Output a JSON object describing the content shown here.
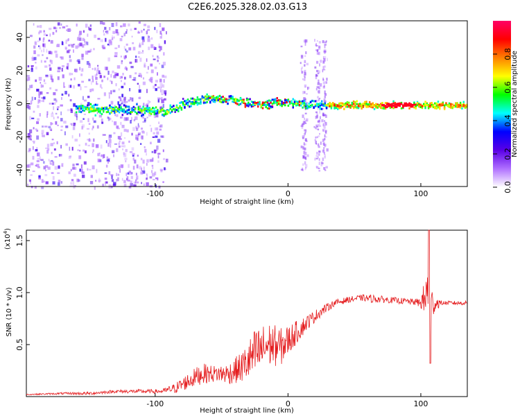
{
  "title": "C2E6.2025.328.02.03.G13",
  "chart_data": [
    {
      "type": "heatmap",
      "name": "spectrogram",
      "xlabel": "Height of straight line (km)",
      "ylabel": "Frequency (Hz)",
      "xlim": [
        -197,
        135
      ],
      "ylim": [
        -50,
        50
      ],
      "xticks": [
        -100,
        0,
        100
      ],
      "xtick_labels": [
        "-100",
        "0",
        "100"
      ],
      "yticks": [
        40,
        20,
        0,
        -20,
        -40
      ],
      "ytick_labels": [
        "40",
        "20",
        "0",
        "-20",
        "-40"
      ],
      "colorbar": {
        "label": "Normalized spectral amplitude",
        "range": [
          0,
          1
        ],
        "ticks": [
          0.0,
          0.2,
          0.4,
          0.6,
          0.8
        ],
        "tick_labels": [
          "0.0",
          "0.2",
          "0.4",
          "0.6",
          "0.8"
        ],
        "colormap": [
          "#ffffff",
          "#b070ff",
          "#5a00e6",
          "#0000ff",
          "#00ffff",
          "#00ff00",
          "#ffff00",
          "#ff8000",
          "#ff0000",
          "#ff0066"
        ]
      },
      "ridge_frequency_hz": [
        {
          "x": -155,
          "y": -3
        },
        {
          "x": -130,
          "y": -4
        },
        {
          "x": -110,
          "y": -4
        },
        {
          "x": -92,
          "y": -5
        },
        {
          "x": -82,
          "y": -1
        },
        {
          "x": -70,
          "y": 2
        },
        {
          "x": -58,
          "y": 3
        },
        {
          "x": -40,
          "y": 2
        },
        {
          "x": -28,
          "y": 0
        },
        {
          "x": -18,
          "y": -1
        },
        {
          "x": -8,
          "y": 1
        },
        {
          "x": 5,
          "y": 0
        },
        {
          "x": 30,
          "y": -1
        },
        {
          "x": 135,
          "y": -1
        }
      ]
    },
    {
      "type": "line",
      "name": "snr",
      "xlabel": "Height of straight line (km)",
      "ylabel": "SNR (10 * v/v)",
      "multiplier_label": "(x10",
      "multiplier_exp": "4",
      "multiplier_close": ")",
      "xlim": [
        -197,
        135
      ],
      "ylim": [
        0,
        1.6
      ],
      "xticks": [
        -100,
        0,
        100
      ],
      "xtick_labels": [
        "-100",
        "0",
        "100"
      ],
      "yticks": [
        0.5,
        1.0,
        1.5
      ],
      "ytick_labels": [
        "0.5",
        "1.0",
        "1.5"
      ],
      "line_color": "#e41a1c",
      "series": [
        {
          "name": "SNR",
          "x": [
            -197,
            -170,
            -150,
            -130,
            -110,
            -95,
            -85,
            -75,
            -65,
            -55,
            -45,
            -35,
            -25,
            -15,
            -5,
            5,
            15,
            25,
            35,
            45,
            55,
            65,
            75,
            85,
            95,
            100,
            104,
            106,
            108,
            115,
            125,
            135
          ],
          "y": [
            0.02,
            0.03,
            0.03,
            0.05,
            0.05,
            0.05,
            0.08,
            0.15,
            0.22,
            0.22,
            0.22,
            0.28,
            0.4,
            0.5,
            0.48,
            0.6,
            0.72,
            0.82,
            0.9,
            0.93,
            0.95,
            0.94,
            0.93,
            0.92,
            0.91,
            0.9,
            0.95,
            1.0,
            0.9,
            0.9,
            0.9,
            0.9
          ],
          "noise": [
            0.005,
            0.01,
            0.015,
            0.015,
            0.02,
            0.02,
            0.05,
            0.08,
            0.1,
            0.08,
            0.1,
            0.15,
            0.25,
            0.22,
            0.18,
            0.12,
            0.07,
            0.05,
            0.03,
            0.03,
            0.03,
            0.04,
            0.03,
            0.03,
            0.03,
            0.05,
            0.25,
            0.6,
            0.15,
            0.02,
            0.02,
            0.02
          ]
        }
      ]
    }
  ]
}
